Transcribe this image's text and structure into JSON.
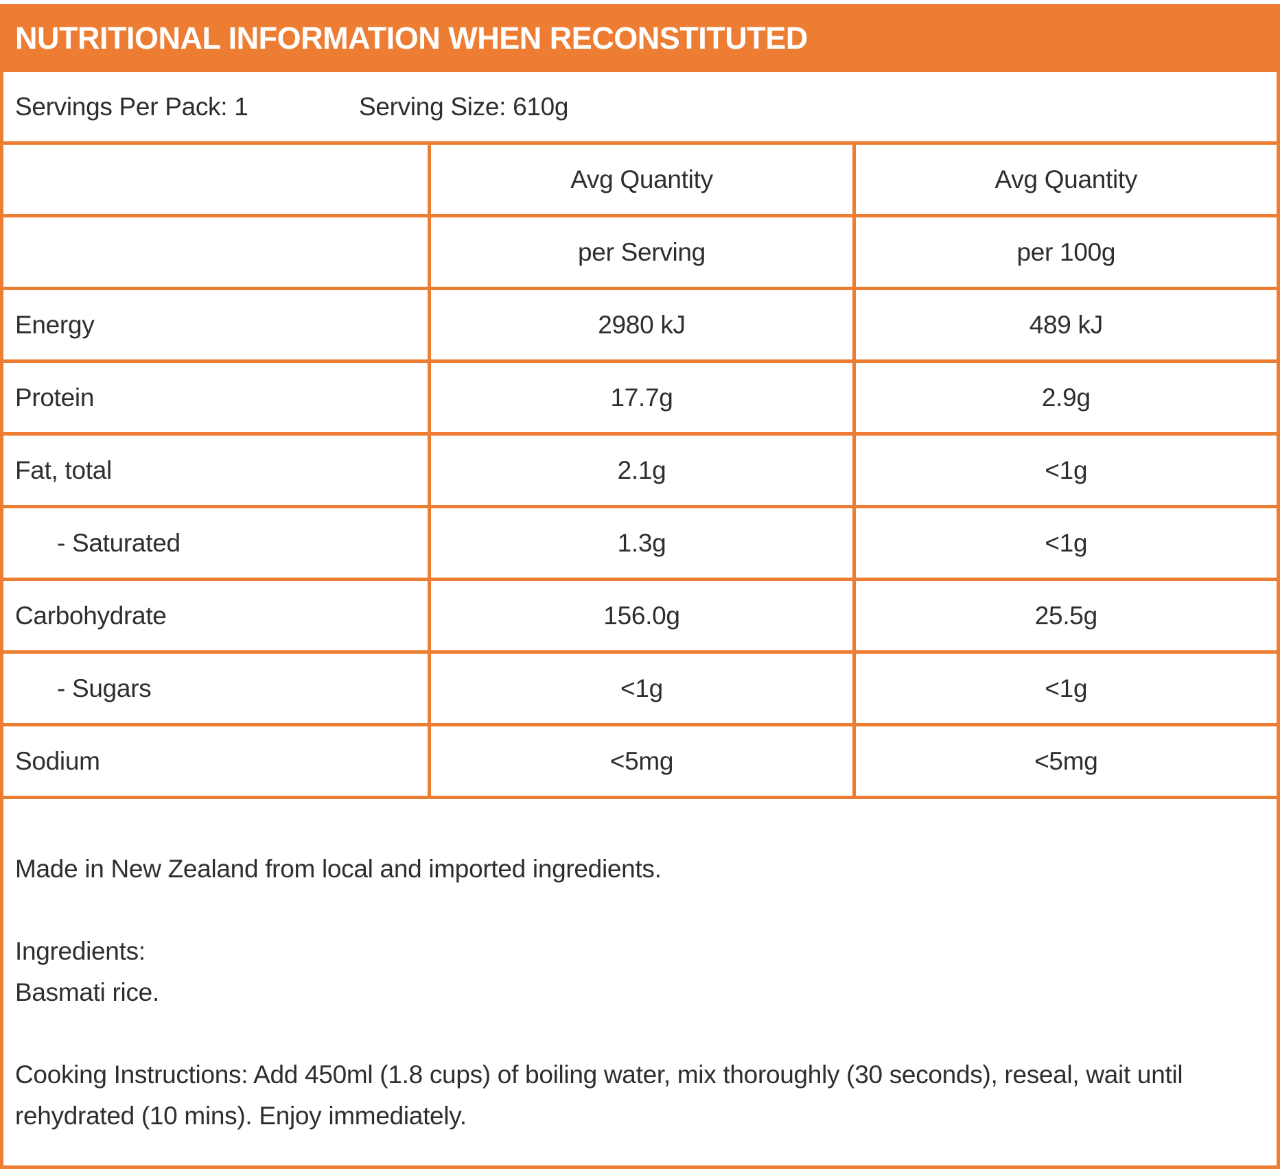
{
  "colors": {
    "accent": "#ED7D33",
    "text": "#2E2E2E",
    "title_text": "#FFFFFF"
  },
  "title": "NUTRITIONAL INFORMATION WHEN RECONSTITUTED",
  "serving_info": {
    "servings_per_pack": "Servings Per Pack: 1",
    "serving_size": "Serving Size: 610g"
  },
  "table": {
    "col_headers": [
      {
        "line1": "Avg Quantity",
        "line2": "per Serving"
      },
      {
        "line1": "Avg Quantity",
        "line2": "per 100g"
      }
    ],
    "rows": [
      {
        "label": "Energy",
        "per_serving": "2980 kJ",
        "per_100g": "489 kJ"
      },
      {
        "label": "Protein",
        "per_serving": "17.7g",
        "per_100g": "2.9g"
      },
      {
        "label": "Fat, total",
        "per_serving": "2.1g",
        "per_100g": "<1g"
      },
      {
        "label": "- Saturated",
        "per_serving": "1.3g",
        "per_100g": "<1g"
      },
      {
        "label": "Carbohydrate",
        "per_serving": "156.0g",
        "per_100g": "25.5g"
      },
      {
        "label": "- Sugars",
        "per_serving": "<1g",
        "per_100g": "<1g"
      },
      {
        "label": "Sodium",
        "per_serving": "<5mg",
        "per_100g": "<5mg"
      }
    ]
  },
  "footer": {
    "origin": "Made in New Zealand from local and imported ingredients.",
    "ingredients_label": "Ingredients:",
    "ingredients": "Basmati rice.",
    "cooking_instructions": "Cooking Instructions: Add 450ml (1.8 cups) of boiling water, mix thoroughly (30 seconds), reseal, wait until rehydrated (10 mins). Enjoy immediately."
  }
}
